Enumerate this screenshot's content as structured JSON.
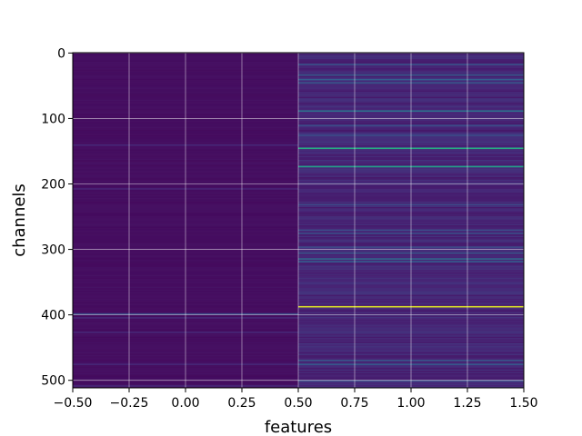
{
  "chart_data": {
    "type": "heatmap",
    "title": "",
    "xlabel": "features",
    "ylabel": "channels",
    "xlim": [
      -0.5,
      1.5
    ],
    "ylim": [
      511.5,
      -0.5
    ],
    "y_inverted": true,
    "grid": true,
    "colormap": "viridis",
    "n_rows": 512,
    "n_cols": 2,
    "xticks": [
      -0.5,
      -0.25,
      0.0,
      0.25,
      0.5,
      0.75,
      1.0,
      1.25,
      1.5
    ],
    "xtick_labels": [
      "−0.50",
      "−0.25",
      "0.00",
      "0.25",
      "0.50",
      "0.75",
      "1.00",
      "1.25",
      "1.50"
    ],
    "yticks": [
      0,
      100,
      200,
      300,
      400,
      500
    ],
    "ytick_labels": [
      "0",
      "100",
      "200",
      "300",
      "400",
      "500"
    ],
    "base_value": 0.04,
    "columns": [
      {
        "index": 0,
        "mean_value": 0.05,
        "bright_rows": [
          {
            "row": 398,
            "value": 0.3
          },
          {
            "row": 404,
            "value": 0.15
          },
          {
            "row": 426,
            "value": 0.14
          },
          {
            "row": 475,
            "value": 0.14
          },
          {
            "row": 508,
            "value": 0.14
          },
          {
            "row": 140,
            "value": 0.14
          },
          {
            "row": 207,
            "value": 0.13
          }
        ]
      },
      {
        "index": 1,
        "mean_value": 0.14,
        "bright_rows": [
          {
            "row": 17,
            "value": 0.32
          },
          {
            "row": 33,
            "value": 0.36
          },
          {
            "row": 40,
            "value": 0.38
          },
          {
            "row": 45,
            "value": 0.34
          },
          {
            "row": 88,
            "value": 0.42
          },
          {
            "row": 110,
            "value": 0.3
          },
          {
            "row": 125,
            "value": 0.3
          },
          {
            "row": 145,
            "value": 0.62
          },
          {
            "row": 173,
            "value": 0.56
          },
          {
            "row": 231,
            "value": 0.28
          },
          {
            "row": 270,
            "value": 0.3
          },
          {
            "row": 275,
            "value": 0.3
          },
          {
            "row": 296,
            "value": 0.28
          },
          {
            "row": 305,
            "value": 0.34
          },
          {
            "row": 314,
            "value": 0.4
          },
          {
            "row": 318,
            "value": 0.36
          },
          {
            "row": 387,
            "value": 0.95
          },
          {
            "row": 469,
            "value": 0.34
          },
          {
            "row": 475,
            "value": 0.36
          },
          {
            "row": 500,
            "value": 0.3
          }
        ]
      }
    ]
  }
}
